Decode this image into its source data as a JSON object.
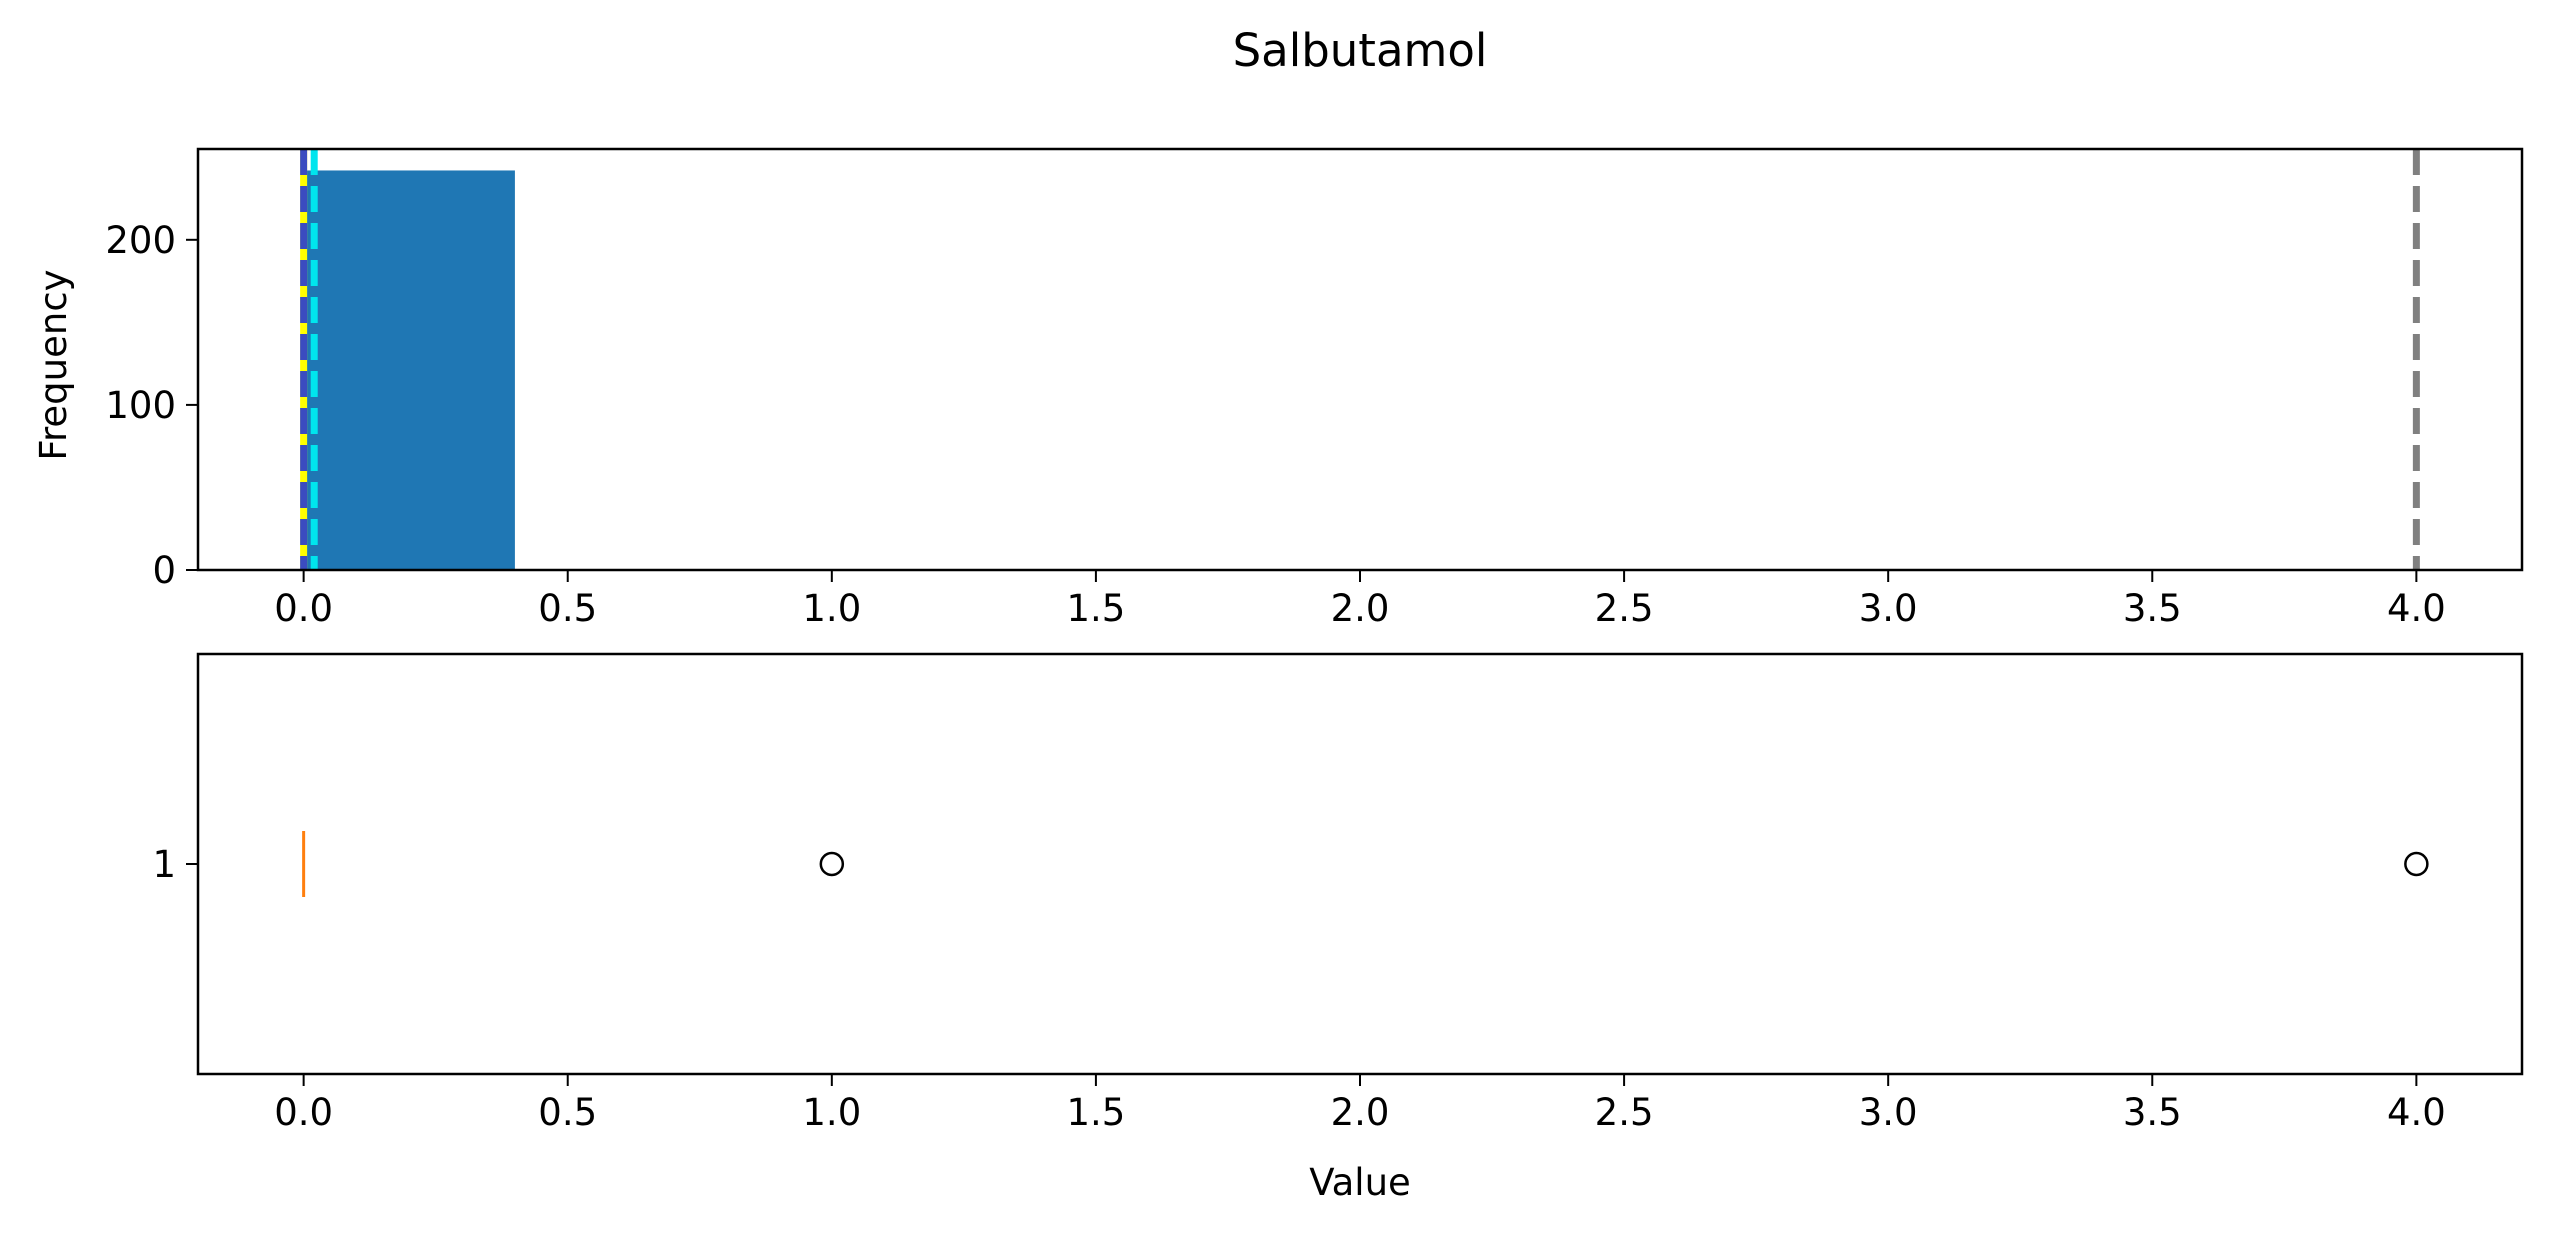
{
  "chart_data": {
    "title": "Salbutamol",
    "charts": [
      {
        "type": "histogram",
        "ylabel": "Frequency",
        "xlim": [
          -0.2,
          4.2
        ],
        "ylim": [
          0,
          255
        ],
        "xticks": [
          "0.0",
          "0.5",
          "1.0",
          "1.5",
          "2.0",
          "2.5",
          "3.0",
          "3.5",
          "4.0"
        ],
        "yticks": [
          "0",
          "100",
          "200"
        ],
        "bars": [
          {
            "x0": 0.0,
            "x1": 0.4,
            "count": 242
          }
        ],
        "bar_color": "#1f77b4",
        "reference_lines": [
          {
            "x": 0.0,
            "color": "#ffff00",
            "style": "solid"
          },
          {
            "x": 0.0,
            "color": "#3b4cc0",
            "style": "dashed"
          },
          {
            "x": 0.02,
            "color": "#00e5ee",
            "style": "dashed"
          },
          {
            "x": 4.0,
            "color": "#808080",
            "style": "dashed"
          }
        ]
      },
      {
        "type": "boxplot",
        "xlabel": "Value",
        "xlim": [
          -0.2,
          4.2
        ],
        "xticks": [
          "0.0",
          "0.5",
          "1.0",
          "1.5",
          "2.0",
          "2.5",
          "3.0",
          "3.5",
          "4.0"
        ],
        "yticks": [
          "1"
        ],
        "box": {
          "min": 0,
          "q1": 0,
          "median": 0,
          "q3": 0,
          "max": 0
        },
        "median_color": "#ff7f0e",
        "outliers": [
          1.0,
          4.0
        ]
      }
    ]
  }
}
